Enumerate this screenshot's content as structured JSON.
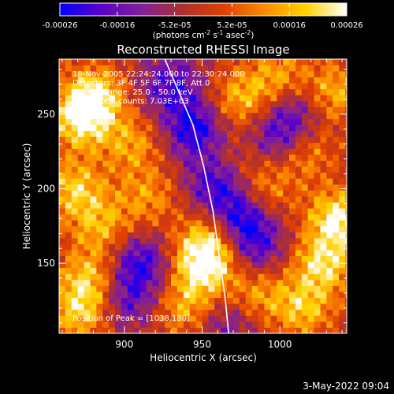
{
  "chart_data": {
    "type": "heatmap",
    "title": "Reconstructed RHESSI Image",
    "xlabel": "Heliocentric X (arcsec)",
    "ylabel": "Heliocentric Y (arcsec)",
    "xlim": [
      858,
      1043
    ],
    "ylim": [
      103,
      287
    ],
    "x_ticks": [
      900,
      950,
      1000
    ],
    "y_ticks": [
      150,
      200,
      250
    ],
    "colorbar": {
      "label_text": "(photons cm",
      "label_sup1": "-2",
      "label_mid": " s",
      "label_sup2": "-1",
      "label_mid2": " asec",
      "label_sup3": "-2",
      "label_end": ")",
      "range": [
        -0.00026,
        0.00026
      ],
      "ticks": [
        "-0.00026",
        "-0.00016",
        "-5.2e-05",
        "5.2e-05",
        "0.00016",
        "0.00026"
      ],
      "colormap": [
        "#0000ff",
        "#5a00c8",
        "#82209a",
        "#b03030",
        "#e04000",
        "#ff8c00",
        "#ffd200",
        "#ffffff"
      ]
    },
    "info_lines": [
      "18-Nov-2005 22:24:24.000 to 22:30:24.000",
      "Detectors: 3F 4F 5F 6F 7F 8F, Att 0",
      "Energy Range: 25.0 - 50.0 keV",
      "Clean     Total counts: 7.03E+03"
    ],
    "peak_text": "Position of Peak = [1038,180]",
    "limb_curve": [
      [
        926,
        287
      ],
      [
        935,
        265
      ],
      [
        944,
        243
      ],
      [
        951,
        215
      ],
      [
        957,
        185
      ],
      [
        961,
        155
      ],
      [
        965,
        125
      ],
      [
        967,
        103
      ]
    ],
    "hotspots": [
      {
        "x": 880,
        "y": 262,
        "v": 0.95
      },
      {
        "x": 872,
        "y": 245,
        "v": 0.8
      },
      {
        "x": 868,
        "y": 200,
        "v": 0.75
      },
      {
        "x": 885,
        "y": 175,
        "v": 0.6
      },
      {
        "x": 878,
        "y": 140,
        "v": 0.7
      },
      {
        "x": 872,
        "y": 118,
        "v": 0.75
      },
      {
        "x": 905,
        "y": 230,
        "v": 0.55
      },
      {
        "x": 915,
        "y": 195,
        "v": 0.5
      },
      {
        "x": 950,
        "y": 148,
        "v": 0.95
      },
      {
        "x": 955,
        "y": 165,
        "v": 0.75
      },
      {
        "x": 940,
        "y": 120,
        "v": 0.6
      },
      {
        "x": 975,
        "y": 260,
        "v": 0.65
      },
      {
        "x": 1000,
        "y": 275,
        "v": 0.6
      },
      {
        "x": 1035,
        "y": 265,
        "v": 0.65
      },
      {
        "x": 1038,
        "y": 180,
        "v": 1.0
      },
      {
        "x": 1028,
        "y": 150,
        "v": 0.85
      },
      {
        "x": 1015,
        "y": 120,
        "v": 0.7
      },
      {
        "x": 985,
        "y": 130,
        "v": 0.55
      },
      {
        "x": 990,
        "y": 200,
        "v": 0.5
      },
      {
        "x": 1015,
        "y": 225,
        "v": 0.55
      },
      {
        "x": 965,
        "y": 215,
        "v": 0.4
      }
    ],
    "coldspots": [
      {
        "x": 945,
        "y": 240,
        "v": -0.9
      },
      {
        "x": 960,
        "y": 205,
        "v": -0.95
      },
      {
        "x": 975,
        "y": 180,
        "v": -0.85
      },
      {
        "x": 930,
        "y": 270,
        "v": -0.7
      },
      {
        "x": 910,
        "y": 150,
        "v": -0.8
      },
      {
        "x": 900,
        "y": 125,
        "v": -0.6
      },
      {
        "x": 1000,
        "y": 235,
        "v": -0.7
      },
      {
        "x": 965,
        "y": 110,
        "v": -0.5
      },
      {
        "x": 1010,
        "y": 255,
        "v": -0.5
      },
      {
        "x": 985,
        "y": 160,
        "v": -0.6
      }
    ]
  },
  "footer": {
    "date": "3-May-2022 09:04"
  }
}
